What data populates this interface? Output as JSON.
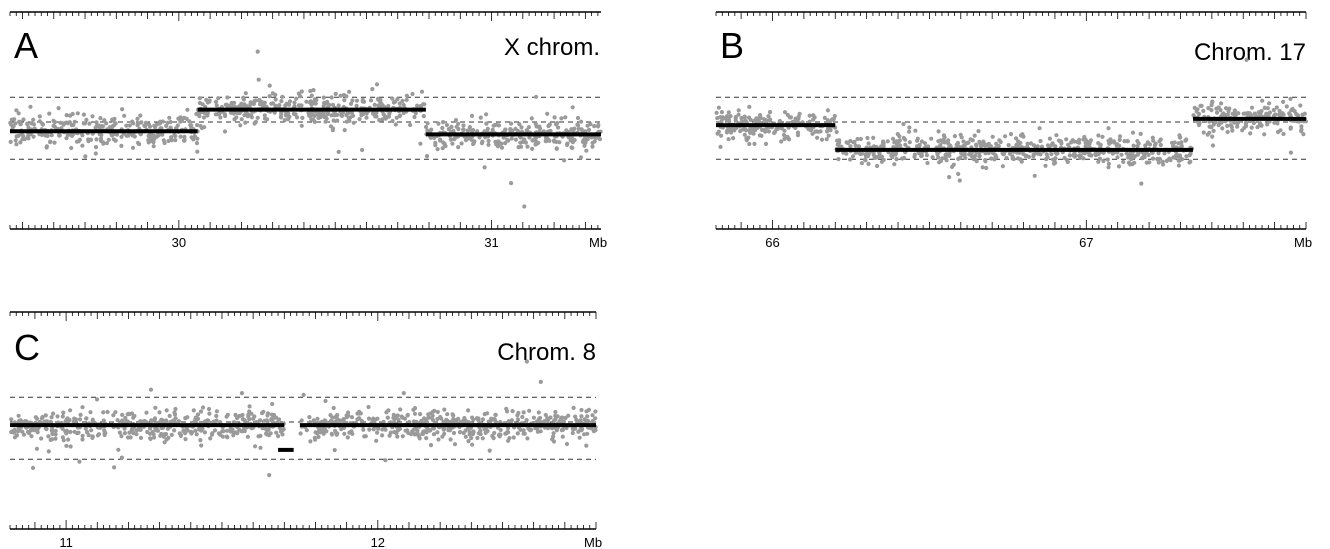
{
  "chart_data": [
    {
      "type": "scatter",
      "panel": "A",
      "title": "X chrom.",
      "unit": "Mb",
      "x_range": [
        29.46,
        31.35
      ],
      "tick_labels": [
        {
          "value": 30,
          "label": "30"
        },
        {
          "value": 31,
          "label": "31"
        }
      ],
      "thresholds": [
        0.4,
        0.0,
        -0.6
      ],
      "series": [
        {
          "segments": [
            {
              "x0": 29.46,
              "x1": 30.06,
              "y": -0.15
            },
            {
              "x0": 30.06,
              "x1": 30.79,
              "y": 0.2
            },
            {
              "x0": 30.79,
              "x1": 31.35,
              "y": -0.2
            }
          ]
        }
      ]
    },
    {
      "type": "scatter",
      "panel": "B",
      "title": "Chrom. 17",
      "unit": "Mb",
      "x_range": [
        65.82,
        67.7
      ],
      "tick_labels": [
        {
          "value": 66,
          "label": "66"
        },
        {
          "value": 67,
          "label": "67"
        }
      ],
      "thresholds": [
        0.4,
        0.0,
        -0.6
      ],
      "series": [
        {
          "segments": [
            {
              "x0": 65.82,
              "x1": 66.2,
              "y": -0.05
            },
            {
              "x0": 66.2,
              "x1": 67.34,
              "y": -0.45
            },
            {
              "x0": 67.34,
              "x1": 67.7,
              "y": 0.05
            }
          ]
        }
      ]
    },
    {
      "type": "scatter",
      "panel": "C",
      "title": "Chrom. 8",
      "unit": "Mb",
      "x_range": [
        10.82,
        12.7
      ],
      "tick_labels": [
        {
          "value": 11,
          "label": "11"
        },
        {
          "value": 12,
          "label": "12"
        }
      ],
      "thresholds": [
        0.4,
        0.0,
        -0.6
      ],
      "series": [
        {
          "segments": [
            {
              "x0": 10.82,
              "x1": 11.7,
              "y": -0.05
            },
            {
              "x0": 11.75,
              "x1": 12.7,
              "y": -0.05
            },
            {
              "x0": 11.68,
              "x1": 11.73,
              "y": -0.45
            }
          ]
        }
      ]
    }
  ]
}
